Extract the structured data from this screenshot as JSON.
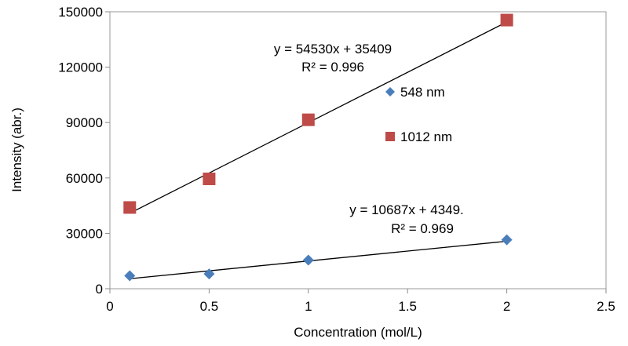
{
  "chart_data": {
    "type": "scatter",
    "title": "",
    "xlabel": "Concentration (mol/L)",
    "ylabel": "Intensity (abr.)",
    "xlim": [
      0,
      2.5
    ],
    "ylim": [
      0,
      150000
    ],
    "xticks": [
      0,
      0.5,
      1,
      1.5,
      2,
      2.5
    ],
    "xtick_labels": [
      "0",
      "0.5",
      "1",
      "1.5",
      "2",
      "2.5"
    ],
    "yticks": [
      0,
      30000,
      60000,
      90000,
      120000,
      150000
    ],
    "ytick_labels": [
      "0",
      "30000",
      "60000",
      "90000",
      "120000",
      "150000"
    ],
    "grid": false,
    "legend_position": "right",
    "series": [
      {
        "name": "548 nm",
        "marker": "diamond",
        "color": "#4a7ebb",
        "points": [
          {
            "x": 0.1,
            "y": 7000
          },
          {
            "x": 0.5,
            "y": 8000
          },
          {
            "x": 1,
            "y": 15500
          },
          {
            "x": 2,
            "y": 26500
          }
        ],
        "trendline": {
          "slope": 10687,
          "intercept": 4349
        },
        "equation": "y = 10687x + 4349.",
        "r2": "R² = 0.969"
      },
      {
        "name": "1012 nm",
        "marker": "square",
        "color": "#be4b48",
        "points": [
          {
            "x": 0.1,
            "y": 44000
          },
          {
            "x": 0.5,
            "y": 59500
          },
          {
            "x": 1,
            "y": 91500
          },
          {
            "x": 2,
            "y": 145500
          }
        ],
        "trendline": {
          "slope": 54530,
          "intercept": 35409
        },
        "equation": "y = 54530x + 35409",
        "r2": "R² = 0.996"
      }
    ]
  }
}
